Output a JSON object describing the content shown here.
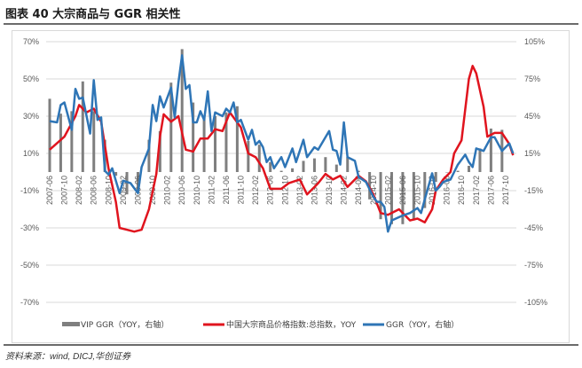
{
  "title": "图表 40   大宗商品与 GGR 相关性",
  "source": "资料来源：wind, DICJ,华创证券",
  "chart_data": {
    "type": "bar+line",
    "title": "",
    "left_axis": {
      "min": -70,
      "max": 70,
      "step": 20,
      "unit": "%",
      "ticks": [
        "70%",
        "50%",
        "30%",
        "10%",
        "-10%",
        "-30%",
        "-50%",
        "-70%"
      ]
    },
    "right_axis": {
      "min": -105,
      "max": 105,
      "step": 30,
      "unit": "%",
      "ticks": [
        "105%",
        "75%",
        "45%",
        "15%",
        "-15%",
        "-45%",
        "-75%",
        "-105%"
      ]
    },
    "x_ticks": [
      "2007-06",
      "2007-10",
      "2008-02",
      "2008-06",
      "2008-10",
      "2009-02",
      "2009-06",
      "2009-10",
      "2010-02",
      "2010-06",
      "2010-10",
      "2011-02",
      "2011-06",
      "2011-10",
      "2012-02",
      "2012-06",
      "2012-10",
      "2013-02",
      "2013-06",
      "2013-10",
      "2014-02",
      "2014-06",
      "2014-10",
      "2015-02",
      "2015-06",
      "2015-10",
      "2016-02",
      "2016-06",
      "2016-10",
      "2017-02",
      "2017-06",
      "2017-10"
    ],
    "x_range": [
      "2007-06",
      "2017-12"
    ],
    "grid": "horizontal",
    "legend_position": "bottom",
    "series": [
      {
        "name": "VIP GGR（YOY，右轴）",
        "kind": "bar",
        "axis": "right",
        "color": "#7f7f7f",
        "x": [
          "2007-06",
          "2007-09",
          "2007-12",
          "2008-03",
          "2008-06",
          "2008-09",
          "2008-12",
          "2009-03",
          "2009-06",
          "2009-09",
          "2009-12",
          "2010-03",
          "2010-06",
          "2010-09",
          "2010-12",
          "2011-03",
          "2011-06",
          "2011-09",
          "2011-12",
          "2012-03",
          "2012-06",
          "2012-09",
          "2012-12",
          "2013-03",
          "2013-06",
          "2013-09",
          "2013-12",
          "2014-03",
          "2014-06",
          "2014-09",
          "2014-12",
          "2015-03",
          "2015-06",
          "2015-09",
          "2015-12",
          "2016-03",
          "2016-06",
          "2016-09",
          "2016-12",
          "2017-03",
          "2017-06",
          "2017-09"
        ],
        "values": [
          59,
          47,
          49,
          73,
          49,
          26,
          -3,
          -18,
          -15,
          26,
          33,
          72,
          99,
          56,
          44,
          45,
          48,
          53,
          25,
          22,
          8,
          1,
          3,
          9,
          11,
          12,
          6,
          12,
          1,
          -22,
          -38,
          -42,
          -42,
          -39,
          -29,
          -8,
          0,
          1,
          5,
          19,
          35,
          34
        ]
      },
      {
        "name": "中国大宗商品价格指数:总指数，YOY",
        "kind": "line",
        "axis": "left",
        "color": "#e0141e",
        "x": [
          "2007-06",
          "2007-10",
          "2008-01",
          "2008-02",
          "2008-04",
          "2008-06",
          "2008-08",
          "2008-10",
          "2008-12",
          "2009-01",
          "2009-03",
          "2009-05",
          "2009-07",
          "2009-09",
          "2009-11",
          "2009-12",
          "2010-01",
          "2010-03",
          "2010-05",
          "2010-07",
          "2010-09",
          "2010-11",
          "2011-01",
          "2011-03",
          "2011-05",
          "2011-07",
          "2011-10",
          "2011-12",
          "2012-02",
          "2012-04",
          "2012-06",
          "2012-09",
          "2012-11",
          "2013-02",
          "2013-04",
          "2013-07",
          "2013-09",
          "2013-11",
          "2014-01",
          "2014-03",
          "2014-06",
          "2014-08",
          "2014-10",
          "2014-12",
          "2015-02",
          "2015-05",
          "2015-08",
          "2015-10",
          "2015-12",
          "2016-02",
          "2016-03",
          "2016-05",
          "2016-07",
          "2016-08",
          "2016-10",
          "2016-12",
          "2017-01",
          "2017-02",
          "2017-04",
          "2017-05",
          "2017-07",
          "2017-09",
          "2017-11",
          "2017-12"
        ],
        "values": [
          12,
          19,
          30,
          36,
          32,
          34,
          27,
          2,
          -16,
          -30,
          -31,
          -32,
          -31,
          -20,
          -1,
          19,
          31,
          27,
          30,
          12,
          11,
          18,
          18,
          23,
          22,
          32,
          24,
          10,
          8,
          2,
          -9,
          -9,
          -6,
          -4,
          -12,
          -6,
          -1,
          -4,
          -2,
          -8,
          -2,
          -5,
          -12,
          -22,
          -23,
          -20,
          -26,
          -25,
          -27,
          -20,
          -10,
          -4,
          0,
          10,
          17,
          50,
          57,
          53,
          35,
          19,
          21,
          21,
          15,
          9
        ]
      },
      {
        "name": "GGR（YOY，右轴）",
        "kind": "line",
        "axis": "right",
        "color": "#2e75b6",
        "x": [
          "2007-06",
          "2007-08",
          "2007-09",
          "2007-10",
          "2007-12",
          "2008-01",
          "2008-02",
          "2008-03",
          "2008-05",
          "2008-06",
          "2008-07",
          "2008-08",
          "2008-09",
          "2008-10",
          "2008-11",
          "2008-12",
          "2009-01",
          "2009-02",
          "2009-04",
          "2009-05",
          "2009-06",
          "2009-07",
          "2009-09",
          "2009-10",
          "2009-11",
          "2009-12",
          "2010-01",
          "2010-03",
          "2010-04",
          "2010-05",
          "2010-06",
          "2010-07",
          "2010-08",
          "2010-09",
          "2010-10",
          "2010-11",
          "2010-12",
          "2011-01",
          "2011-02",
          "2011-03",
          "2011-05",
          "2011-06",
          "2011-07",
          "2011-08",
          "2011-09",
          "2011-10",
          "2011-12",
          "2012-01",
          "2012-02",
          "2012-03",
          "2012-04",
          "2012-05",
          "2012-06",
          "2012-07",
          "2012-09",
          "2012-10",
          "2012-12",
          "2013-01",
          "2013-03",
          "2013-04",
          "2013-06",
          "2013-07",
          "2013-10",
          "2013-11",
          "2013-12",
          "2014-01",
          "2014-02",
          "2014-03",
          "2014-05",
          "2014-06",
          "2014-08",
          "2014-10",
          "2014-11",
          "2014-12",
          "2015-01",
          "2015-02",
          "2015-03",
          "2015-06",
          "2015-08",
          "2015-10",
          "2015-11",
          "2015-12",
          "2016-02",
          "2016-03",
          "2016-04",
          "2016-05",
          "2016-07",
          "2016-08",
          "2016-09",
          "2016-11",
          "2016-12",
          "2017-01",
          "2017-02",
          "2017-04",
          "2017-06",
          "2017-07",
          "2017-09",
          "2017-11",
          "2017-12"
        ],
        "values": [
          41,
          40,
          54,
          56,
          34,
          67,
          59,
          60,
          31,
          74,
          42,
          44,
          1,
          -2,
          3,
          -7,
          -17,
          -7,
          -9,
          -13,
          -17,
          4,
          19,
          54,
          41,
          61,
          52,
          68,
          44,
          72,
          94,
          67,
          70,
          40,
          40,
          49,
          42,
          65,
          33,
          48,
          45,
          51,
          48,
          56,
          40,
          42,
          26,
          34,
          22,
          25,
          20,
          8,
          12,
          3,
          12,
          4,
          19,
          8,
          26,
          12,
          20,
          18,
          33,
          18,
          17,
          6,
          40,
          12,
          9,
          -4,
          -8,
          -20,
          -24,
          -24,
          -28,
          -48,
          -39,
          -35,
          -33,
          -29,
          -33,
          -22,
          -1,
          -15,
          -12,
          -8,
          -6,
          0,
          6,
          14,
          8,
          4,
          19,
          17,
          28,
          28,
          17,
          23,
          15
        ]
      }
    ]
  }
}
